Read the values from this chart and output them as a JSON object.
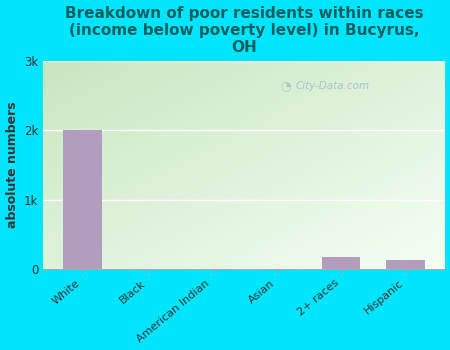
{
  "title": "Breakdown of poor residents within races\n(income below poverty level) in Bucyrus,\nOH",
  "categories": [
    "White",
    "Black",
    "American Indian",
    "Asian",
    "2+ races",
    "Hispanic"
  ],
  "values": [
    2000,
    0,
    0,
    0,
    180,
    130
  ],
  "bar_color": "#b39dbd",
  "ylabel": "absolute numbers",
  "ylim": [
    0,
    3000
  ],
  "yticks": [
    0,
    1000,
    2000,
    3000
  ],
  "ytick_labels": [
    "0",
    "1k",
    "2k",
    "3k"
  ],
  "background_color": "#00e5ff",
  "plot_bg_top_left": "#c8e6c0",
  "plot_bg_bottom_right": "#f5fff5",
  "title_fontsize": 11,
  "title_color": "#006060",
  "axis_label_fontsize": 9,
  "watermark": "City-Data.com",
  "grid_color": "#ccddcc"
}
